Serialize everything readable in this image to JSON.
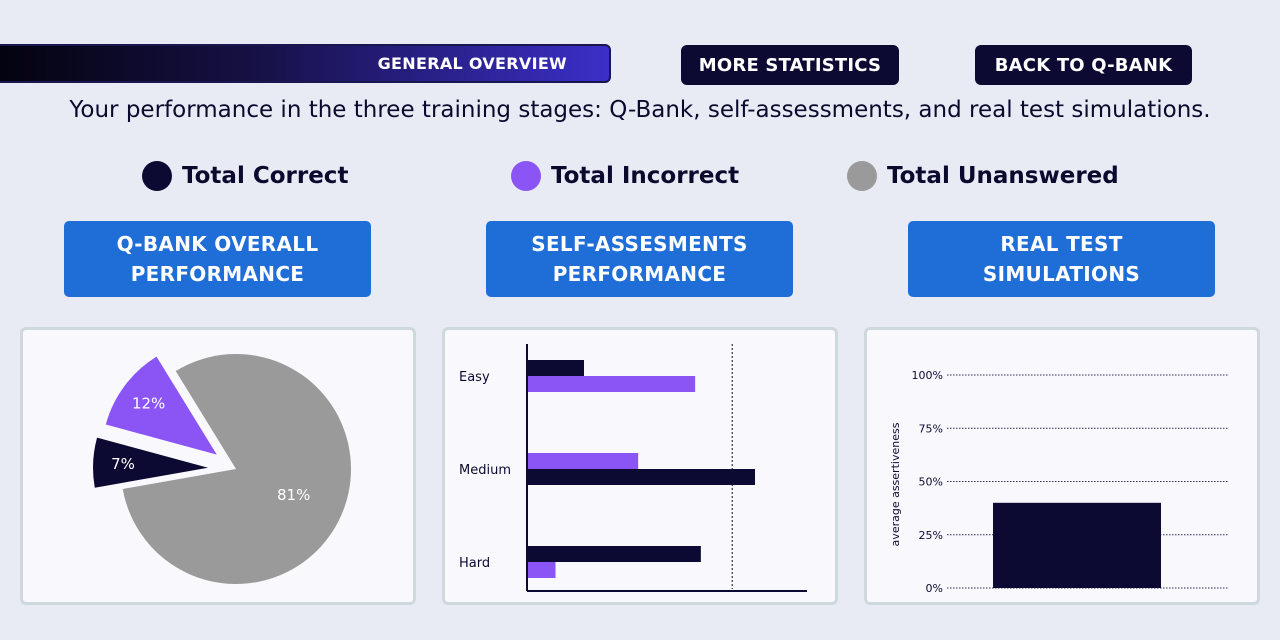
{
  "nav": {
    "general_overview": "GENERAL OVERVIEW",
    "more_statistics": "MORE STATISTICS",
    "back_to_qbank": "BACK TO Q-BANK"
  },
  "subtitle": "Your performance in the three training stages: Q-Bank, self-assessments, and real test simulations.",
  "legend": [
    {
      "label": "Total Correct",
      "color": "#0c0a33"
    },
    {
      "label": "Total Incorrect",
      "color": "#8b55f5"
    },
    {
      "label": "Total Unanswered",
      "color": "#9a9a9a"
    }
  ],
  "sections": [
    {
      "line1": "Q-BANK OVERALL",
      "line2": "PERFORMANCE"
    },
    {
      "line1": "SELF-ASSESMENTS",
      "line2": "PERFORMANCE"
    },
    {
      "line1": "REAL TEST",
      "line2": "SIMULATIONS"
    }
  ],
  "chart_data": [
    {
      "type": "pie",
      "slices": [
        {
          "label": "7%",
          "value": 7,
          "color": "#0c0a33"
        },
        {
          "label": "12%",
          "value": 12,
          "color": "#8b55f5"
        },
        {
          "label": "81%",
          "value": 81,
          "color": "#9a9a9a"
        }
      ],
      "exploded": [
        "7%",
        "12%"
      ]
    },
    {
      "type": "bar",
      "orientation": "horizontal",
      "categories": [
        "Easy",
        "Medium",
        "Hard"
      ],
      "series": [
        {
          "name": "Total Correct",
          "color": "#0c0a33",
          "values": [
            20,
            80,
            61
          ]
        },
        {
          "name": "Total Incorrect",
          "color": "#8b55f5",
          "values": [
            59,
            39,
            10
          ]
        }
      ],
      "xlim": [
        0,
        100
      ],
      "reference_line": 72
    },
    {
      "type": "bar",
      "categories": [
        ""
      ],
      "values": [
        40
      ],
      "color": "#0c0a33",
      "ylabel": "average assertiveness",
      "yticks": [
        "0%",
        "25%",
        "50%",
        "75%",
        "100%"
      ],
      "ylim": [
        0,
        100
      ],
      "grid": true
    }
  ]
}
